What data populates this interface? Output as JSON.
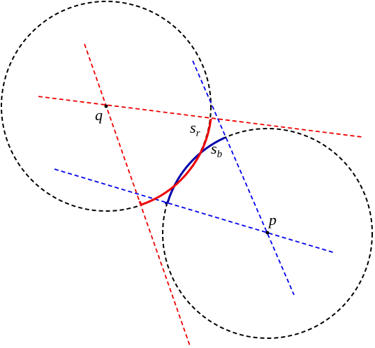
{
  "labels": {
    "q": "q",
    "p": "p",
    "s_r": {
      "base": "s",
      "sub": "r"
    },
    "s_b": {
      "base": "s",
      "sub": "b"
    }
  }
}
